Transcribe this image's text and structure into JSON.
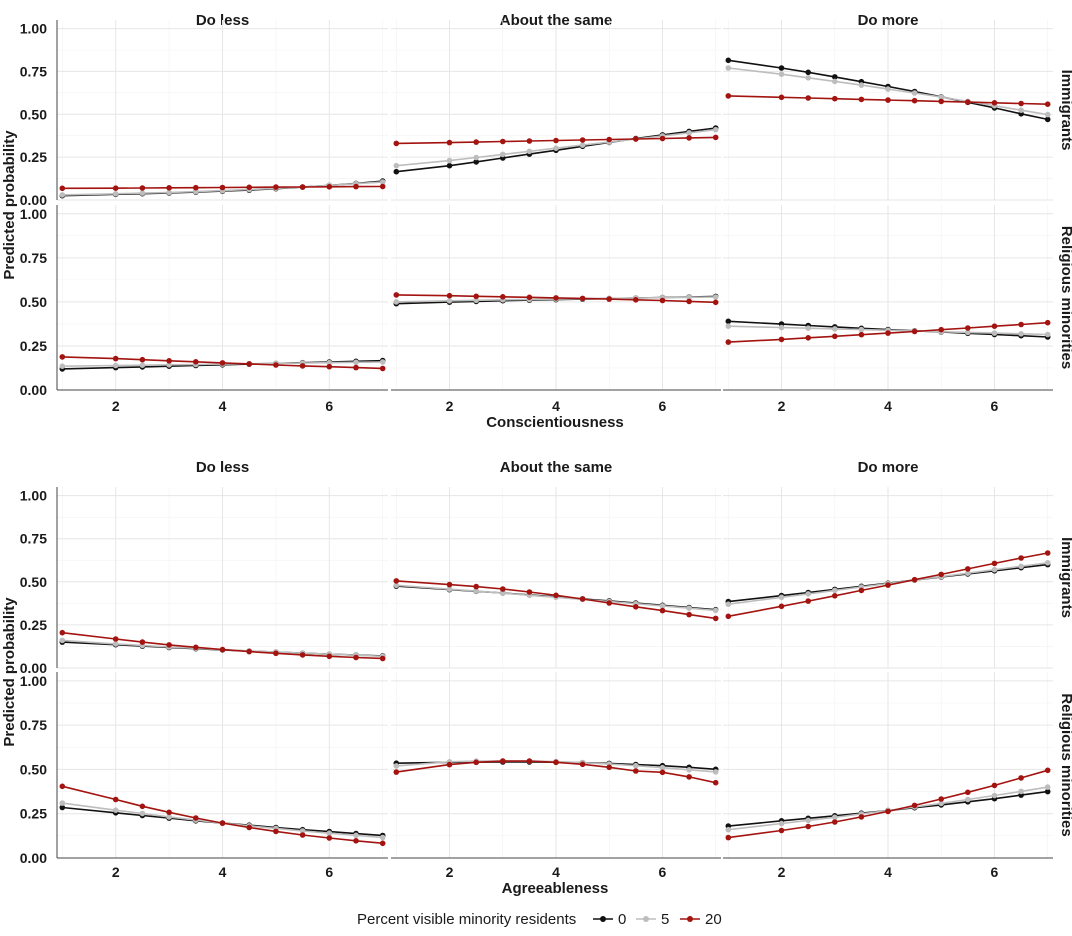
{
  "legend": {
    "title": "Percent visible minority residents",
    "entries": [
      {
        "label": "0",
        "color": "#111111"
      },
      {
        "label": "5",
        "color": "#bdbdbd"
      },
      {
        "label": "20",
        "color": "#a3130f"
      }
    ]
  },
  "chart_data": [
    {
      "type": "line",
      "title": "Conscientiousness",
      "xlabel": "Conscientiousness",
      "ylabel": "Predicted probability",
      "columns": [
        "Do less",
        "About the same",
        "Do more"
      ],
      "rows": [
        "Immigrants",
        "Religious minorities"
      ],
      "x": [
        1,
        2,
        2.5,
        3,
        3.5,
        4,
        4.5,
        5,
        5.5,
        6,
        6.5,
        7
      ],
      "xticks": [
        "2",
        "4",
        "6"
      ],
      "xlim": [
        0.9,
        7.1
      ],
      "ylim": [
        0,
        1.05
      ],
      "yticks": [
        "0.00",
        "0.25",
        "0.50",
        "0.75",
        "1.00"
      ],
      "panels": [
        {
          "row": "Immigrants",
          "col": "Do less",
          "series": [
            {
              "name": "0",
              "values": [
                0.025,
                0.033,
                0.037,
                0.041,
                0.046,
                0.052,
                0.058,
                0.066,
                0.075,
                0.085,
                0.097,
                0.11
              ]
            },
            {
              "name": "5",
              "values": [
                0.03,
                0.036,
                0.04,
                0.044,
                0.049,
                0.055,
                0.061,
                0.068,
                0.076,
                0.085,
                0.095,
                0.105
              ]
            },
            {
              "name": "20",
              "values": [
                0.068,
                0.069,
                0.07,
                0.071,
                0.072,
                0.073,
                0.074,
                0.075,
                0.076,
                0.077,
                0.078,
                0.079
              ]
            }
          ]
        },
        {
          "row": "Immigrants",
          "col": "About the same",
          "series": [
            {
              "name": "0",
              "values": [
                0.165,
                0.2,
                0.222,
                0.245,
                0.268,
                0.29,
                0.313,
                0.336,
                0.358,
                0.38,
                0.4,
                0.42
              ]
            },
            {
              "name": "5",
              "values": [
                0.2,
                0.23,
                0.248,
                0.266,
                0.284,
                0.302,
                0.32,
                0.338,
                0.356,
                0.374,
                0.392,
                0.41
              ]
            },
            {
              "name": "20",
              "values": [
                0.33,
                0.335,
                0.338,
                0.341,
                0.344,
                0.347,
                0.35,
                0.353,
                0.356,
                0.359,
                0.362,
                0.365
              ]
            }
          ]
        },
        {
          "row": "Immigrants",
          "col": "Do more",
          "series": [
            {
              "name": "0",
              "values": [
                0.815,
                0.77,
                0.745,
                0.718,
                0.69,
                0.662,
                0.633,
                0.602,
                0.57,
                0.537,
                0.503,
                0.47
              ]
            },
            {
              "name": "5",
              "values": [
                0.77,
                0.734,
                0.713,
                0.692,
                0.67,
                0.647,
                0.624,
                0.6,
                0.575,
                0.55,
                0.524,
                0.498
              ]
            },
            {
              "name": "20",
              "values": [
                0.607,
                0.599,
                0.595,
                0.591,
                0.587,
                0.583,
                0.579,
                0.575,
                0.571,
                0.567,
                0.563,
                0.559
              ]
            }
          ]
        },
        {
          "row": "Religious minorities",
          "col": "Do less",
          "series": [
            {
              "name": "0",
              "values": [
                0.12,
                0.127,
                0.131,
                0.135,
                0.139,
                0.143,
                0.147,
                0.151,
                0.155,
                0.159,
                0.163,
                0.167
              ]
            },
            {
              "name": "5",
              "values": [
                0.135,
                0.139,
                0.141,
                0.143,
                0.145,
                0.147,
                0.149,
                0.151,
                0.153,
                0.155,
                0.157,
                0.159
              ]
            },
            {
              "name": "20",
              "values": [
                0.188,
                0.178,
                0.172,
                0.166,
                0.16,
                0.154,
                0.148,
                0.142,
                0.137,
                0.132,
                0.127,
                0.122
              ]
            }
          ]
        },
        {
          "row": "Religious minorities",
          "col": "About the same",
          "series": [
            {
              "name": "0",
              "values": [
                0.49,
                0.499,
                0.503,
                0.507,
                0.51,
                0.513,
                0.516,
                0.519,
                0.522,
                0.525,
                0.528,
                0.531
              ]
            },
            {
              "name": "5",
              "values": [
                0.5,
                0.506,
                0.509,
                0.512,
                0.514,
                0.516,
                0.518,
                0.52,
                0.522,
                0.524,
                0.526,
                0.528
              ]
            },
            {
              "name": "20",
              "values": [
                0.54,
                0.535,
                0.532,
                0.529,
                0.526,
                0.523,
                0.52,
                0.516,
                0.512,
                0.508,
                0.503,
                0.498
              ]
            }
          ]
        },
        {
          "row": "Religious minorities",
          "col": "Do more",
          "series": [
            {
              "name": "0",
              "values": [
                0.39,
                0.374,
                0.366,
                0.358,
                0.35,
                0.343,
                0.336,
                0.329,
                0.322,
                0.315,
                0.308,
                0.301
              ]
            },
            {
              "name": "5",
              "values": [
                0.362,
                0.355,
                0.351,
                0.347,
                0.343,
                0.339,
                0.335,
                0.331,
                0.327,
                0.323,
                0.319,
                0.315
              ]
            },
            {
              "name": "20",
              "values": [
                0.272,
                0.287,
                0.296,
                0.305,
                0.314,
                0.323,
                0.332,
                0.342,
                0.352,
                0.362,
                0.372,
                0.382
              ]
            }
          ]
        }
      ]
    },
    {
      "type": "line",
      "title": "Agreeableness",
      "xlabel": "Agreeableness",
      "ylabel": "Predicted probability",
      "columns": [
        "Do less",
        "About the same",
        "Do more"
      ],
      "rows": [
        "Immigrants",
        "Religious minorities"
      ],
      "x": [
        1,
        2,
        2.5,
        3,
        3.5,
        4,
        4.5,
        5,
        5.5,
        6,
        6.5,
        7
      ],
      "xticks": [
        "2",
        "4",
        "6"
      ],
      "xlim": [
        0.9,
        7.1
      ],
      "ylim": [
        0,
        1.05
      ],
      "yticks": [
        "0.00",
        "0.25",
        "0.50",
        "0.75",
        "1.00"
      ],
      "panels": [
        {
          "row": "Immigrants",
          "col": "Do less",
          "series": [
            {
              "name": "0",
              "values": [
                0.15,
                0.135,
                0.127,
                0.119,
                0.112,
                0.105,
                0.098,
                0.092,
                0.086,
                0.08,
                0.075,
                0.07
              ]
            },
            {
              "name": "5",
              "values": [
                0.16,
                0.14,
                0.131,
                0.122,
                0.114,
                0.106,
                0.099,
                0.092,
                0.086,
                0.08,
                0.074,
                0.068
              ]
            },
            {
              "name": "20",
              "values": [
                0.205,
                0.168,
                0.15,
                0.134,
                0.12,
                0.107,
                0.095,
                0.085,
                0.076,
                0.068,
                0.061,
                0.055
              ]
            }
          ]
        },
        {
          "row": "Immigrants",
          "col": "About the same",
          "series": [
            {
              "name": "0",
              "values": [
                0.475,
                0.455,
                0.445,
                0.435,
                0.424,
                0.413,
                0.401,
                0.389,
                0.377,
                0.364,
                0.351,
                0.338
              ]
            },
            {
              "name": "5",
              "values": [
                0.48,
                0.457,
                0.446,
                0.434,
                0.422,
                0.41,
                0.398,
                0.386,
                0.373,
                0.36,
                0.347,
                0.334
              ]
            },
            {
              "name": "20",
              "values": [
                0.505,
                0.484,
                0.472,
                0.458,
                0.441,
                0.422,
                0.4,
                0.377,
                0.355,
                0.333,
                0.31,
                0.288
              ]
            }
          ]
        },
        {
          "row": "Immigrants",
          "col": "Do more",
          "series": [
            {
              "name": "0",
              "values": [
                0.385,
                0.42,
                0.438,
                0.456,
                0.474,
                0.492,
                0.51,
                0.528,
                0.546,
                0.564,
                0.582,
                0.6
              ]
            },
            {
              "name": "5",
              "values": [
                0.37,
                0.41,
                0.43,
                0.45,
                0.47,
                0.49,
                0.51,
                0.53,
                0.55,
                0.57,
                0.59,
                0.61
              ]
            },
            {
              "name": "20",
              "values": [
                0.3,
                0.358,
                0.388,
                0.419,
                0.45,
                0.481,
                0.512,
                0.543,
                0.575,
                0.607,
                0.638,
                0.667
              ]
            }
          ]
        },
        {
          "row": "Religious minorities",
          "col": "Do less",
          "series": [
            {
              "name": "0",
              "values": [
                0.285,
                0.255,
                0.24,
                0.225,
                0.21,
                0.197,
                0.185,
                0.172,
                0.16,
                0.149,
                0.138,
                0.127
              ]
            },
            {
              "name": "5",
              "values": [
                0.31,
                0.27,
                0.251,
                0.232,
                0.214,
                0.197,
                0.182,
                0.167,
                0.153,
                0.14,
                0.128,
                0.116
              ]
            },
            {
              "name": "20",
              "values": [
                0.405,
                0.33,
                0.292,
                0.258,
                0.226,
                0.197,
                0.172,
                0.15,
                0.13,
                0.113,
                0.097,
                0.083
              ]
            }
          ]
        },
        {
          "row": "Religious minorities",
          "col": "About the same",
          "series": [
            {
              "name": "0",
              "values": [
                0.535,
                0.54,
                0.541,
                0.542,
                0.542,
                0.541,
                0.538,
                0.534,
                0.528,
                0.521,
                0.512,
                0.501
              ]
            },
            {
              "name": "5",
              "values": [
                0.52,
                0.543,
                0.547,
                0.548,
                0.547,
                0.544,
                0.538,
                0.53,
                0.521,
                0.51,
                0.498,
                0.486
              ]
            },
            {
              "name": "20",
              "values": [
                0.485,
                0.527,
                0.54,
                0.547,
                0.547,
                0.54,
                0.529,
                0.512,
                0.491,
                0.484,
                0.458,
                0.425
              ]
            }
          ]
        },
        {
          "row": "Religious minorities",
          "col": "Do more",
          "series": [
            {
              "name": "0",
              "values": [
                0.18,
                0.21,
                0.224,
                0.238,
                0.253,
                0.268,
                0.284,
                0.3,
                0.317,
                0.335,
                0.355,
                0.375
              ]
            },
            {
              "name": "5",
              "values": [
                0.16,
                0.195,
                0.212,
                0.23,
                0.249,
                0.268,
                0.288,
                0.308,
                0.33,
                0.353,
                0.376,
                0.4
              ]
            },
            {
              "name": "20",
              "values": [
                0.115,
                0.155,
                0.178,
                0.203,
                0.232,
                0.263,
                0.297,
                0.333,
                0.371,
                0.41,
                0.452,
                0.495
              ]
            }
          ]
        }
      ]
    }
  ]
}
